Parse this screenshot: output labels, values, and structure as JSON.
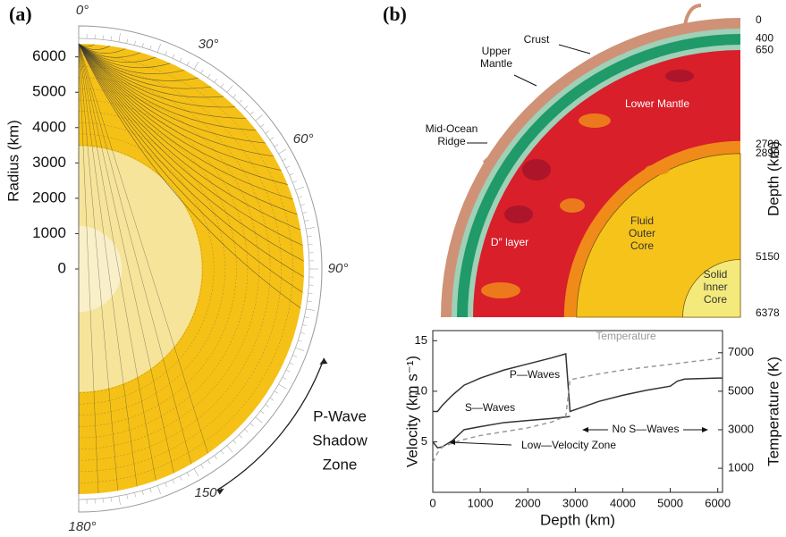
{
  "panel_a": {
    "label": "(a)",
    "axis_title": "Radius (km)",
    "radius_ticks": [
      0,
      1000,
      2000,
      3000,
      4000,
      5000,
      6000
    ],
    "angles": [
      {
        "value": 0,
        "label": "0°"
      },
      {
        "value": 30,
        "label": "30°"
      },
      {
        "value": 60,
        "label": "60°"
      },
      {
        "value": 90,
        "label": "90°"
      },
      {
        "value": 150,
        "label": "150°"
      },
      {
        "value": 180,
        "label": "180°"
      }
    ],
    "shadow_zone": [
      "P-Wave",
      "Shadow",
      "Zone"
    ]
  },
  "panel_b": {
    "label": "(b)",
    "axis_title": "Depth (km)",
    "depth_ticks": [
      0,
      400,
      650,
      2700,
      2890,
      5150,
      6378
    ],
    "layers": [
      "Crust",
      "Upper Mantle",
      "Mid-Ocean Ridge",
      "Lower Mantle",
      "D″ layer",
      "Fluid Outer Core",
      "Solid Inner Core"
    ]
  },
  "chart_data": {
    "type": "line",
    "xlabel": "Depth (km)",
    "ylabel": "Velocity (km s⁻¹)",
    "y2label": "Temperature (K)",
    "xlim": [
      0,
      6100
    ],
    "xticks": [
      0,
      1000,
      2000,
      3000,
      4000,
      5000,
      6000
    ],
    "ylim": [
      0,
      16
    ],
    "yticks": [
      5,
      10,
      15
    ],
    "y2lim": [
      -250,
      8150
    ],
    "y2ticks": [
      1000,
      3000,
      5000,
      7000
    ],
    "series": [
      {
        "name": "P—Waves",
        "color": "#333333",
        "style": "solid",
        "x": [
          0,
          100,
          200,
          410,
          660,
          1000,
          1500,
          2000,
          2500,
          2800,
          2890,
          3500,
          4000,
          4500,
          5000,
          5150,
          5300,
          6000,
          6100
        ],
        "values": [
          8.0,
          8.0,
          8.6,
          9.6,
          10.6,
          11.3,
          12.1,
          12.7,
          13.3,
          13.7,
          8.0,
          9.0,
          9.6,
          10.1,
          10.5,
          11.0,
          11.2,
          11.3,
          11.3
        ]
      },
      {
        "name": "S—Waves",
        "color": "#333333",
        "style": "solid",
        "x": [
          0,
          100,
          200,
          410,
          660,
          1000,
          1500,
          2000,
          2500,
          2890
        ],
        "values": [
          5.0,
          4.4,
          4.5,
          5.1,
          6.2,
          6.5,
          6.9,
          7.1,
          7.3,
          7.5
        ]
      },
      {
        "name": "Temperature",
        "color": "#999999",
        "style": "dashed",
        "axis": "y2",
        "x": [
          0,
          100,
          200,
          410,
          660,
          1000,
          1500,
          2000,
          2500,
          2800,
          2890,
          3500,
          4000,
          5000,
          6000,
          6100
        ],
        "values": [
          1300,
          1800,
          2100,
          2300,
          2500,
          2700,
          2900,
          3100,
          3400,
          3700,
          5600,
          5900,
          6100,
          6400,
          6700,
          6750
        ]
      }
    ],
    "annotations": [
      "Low—Velocity Zone",
      "No S—Waves"
    ]
  }
}
